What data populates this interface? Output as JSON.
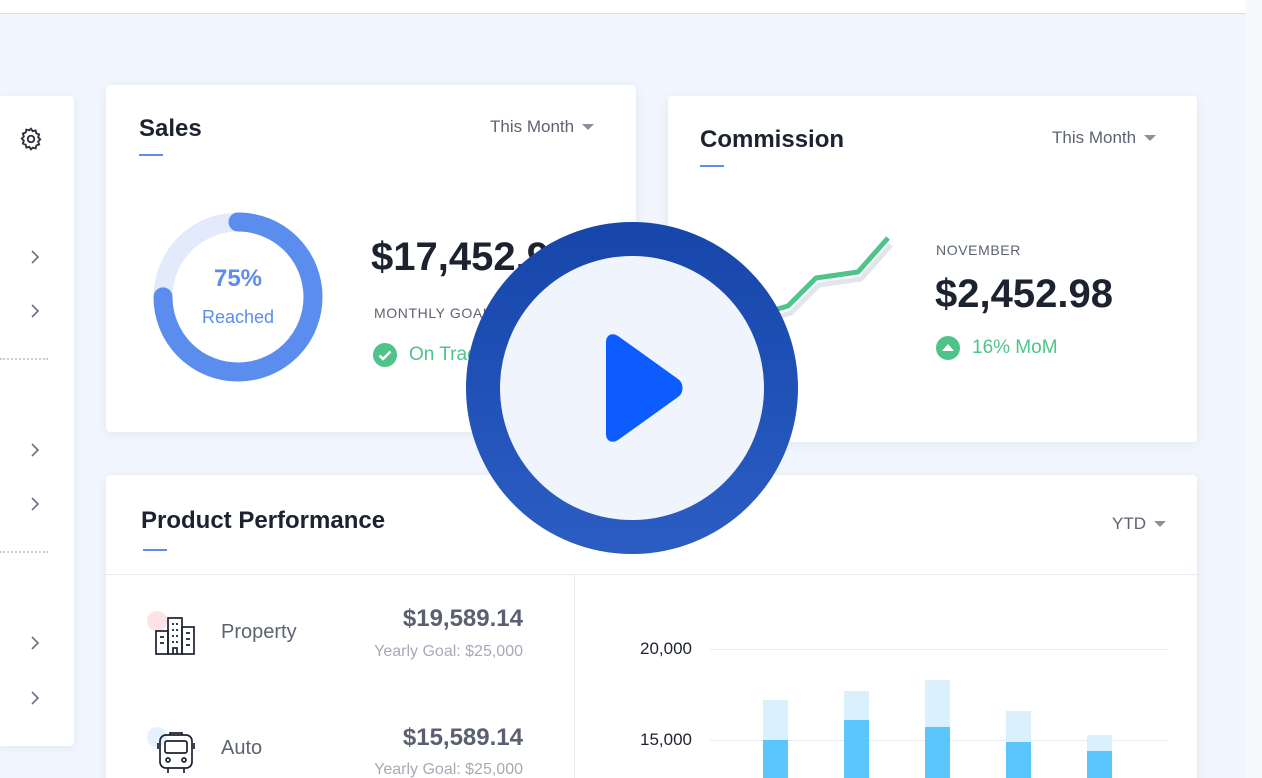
{
  "colors": {
    "accent_blue": "#5b8def",
    "success_green": "#4ec38a",
    "bar_light": "#dbf0fd",
    "bar_dark": "#5ac6fb",
    "play_ring": "#1d4fb0",
    "play_triangle": "#0d5cff"
  },
  "sidebar": {
    "icons": [
      "gear-icon",
      "chevron-right-icon"
    ]
  },
  "sales": {
    "title": "Sales",
    "period": "This Month",
    "progress_percent": 75,
    "progress_label": "75%",
    "progress_caption": "Reached",
    "amount": "$17,452.9",
    "goal_label": "MONTHLY GOAL",
    "status": "On Track"
  },
  "commission": {
    "title": "Commission",
    "period": "This Month",
    "month_label": "NOVEMBER",
    "amount": "$2,452.98",
    "change": "16% MoM"
  },
  "product_performance": {
    "title": "Product Performance",
    "period": "YTD",
    "items": [
      {
        "label": "Property",
        "amount": "$19,589.14",
        "goal": "Yearly Goal: $25,000",
        "icon": "building-icon"
      },
      {
        "label": "Auto",
        "amount": "$15,589.14",
        "goal": "Yearly Goal: $25,000",
        "icon": "bus-icon"
      }
    ]
  },
  "chart_data": {
    "type": "bar",
    "ylim": [
      10000,
      20000
    ],
    "y_ticks": [
      "20,000",
      "15,000"
    ],
    "series": [
      {
        "values": [
          17200,
          17700,
          18300,
          16600,
          15300
        ]
      },
      {
        "values": [
          15000,
          16100,
          15700,
          14900,
          14400
        ]
      }
    ]
  }
}
